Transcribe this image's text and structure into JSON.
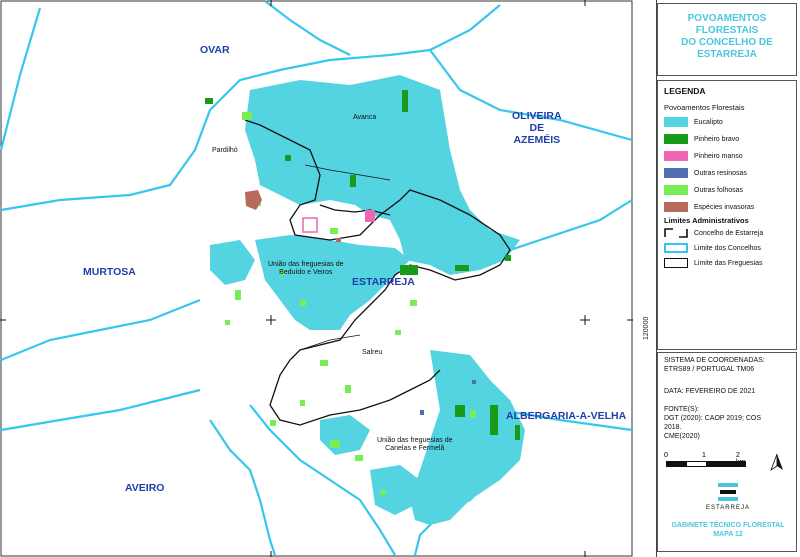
{
  "colors": {
    "eucalipto": "#54d3e0",
    "pinheiro_bravo": "#1a9a1a",
    "pinheiro_manso": "#ef67b3",
    "outras_resinosas": "#4e6fb0",
    "outras_folhosas": "#77ee55",
    "especies_invasoras": "#b56a5b",
    "limite_concelhos": "#37c6ec",
    "title_accent": "#4cc6e0",
    "concelho_label": "#1f3fa8"
  },
  "map": {
    "concelhos": {
      "ovar": "OVAR",
      "oliveira": "OLIVEIRA\nDE\nAZEMÉIS",
      "murtosa": "MURTOSA",
      "estarreja": "ESTARREJA",
      "albergaria": "ALBERGARIA-A-VELHA",
      "aveiro": "AVEIRO"
    },
    "freguesias": {
      "avanca": "Avanca",
      "pardilho": "Pardilhó",
      "beduido": "União das freguesias de\nBeduído e Veiros",
      "salreu": "Salreu",
      "canelas": "União das freguesias de\nCanelas e Fermelã"
    },
    "coordinate_label": "120000"
  },
  "panel": {
    "title": "POVOAMENTOS\nFLORESTAIS\nDO CONCELHO DE\nESTARREJA",
    "legend_heading": "LEGENDA",
    "povoamentos_heading": "Povoamentos Florestais",
    "items": [
      {
        "label": "Eucalipto",
        "color": "#54d3e0"
      },
      {
        "label": "Pinheiro bravo",
        "color": "#1a9a1a"
      },
      {
        "label": "Pinheiro manso",
        "color": "#ef67b3"
      },
      {
        "label": "Outras resinosas",
        "color": "#4e6fb0"
      },
      {
        "label": "Outras folhosas",
        "color": "#77ee55"
      },
      {
        "label": "Espécies invasoras",
        "color": "#b56a5b"
      }
    ],
    "limites_heading": "Limites Administrativos",
    "limites": [
      {
        "label": "Concelho de Estarreja",
        "style": "corner-black"
      },
      {
        "label": "Limite dos Concelhos",
        "style": "cyan-outline"
      },
      {
        "label": "Limite das Freguesias",
        "style": "black-outline"
      }
    ],
    "sistema": "SISTEMA DE COORDENADAS:\nETRS89 / PORTUGAL TM06",
    "data": "DATA: FEVEREIRO DE 2021",
    "fonte": "FONTE(S):\nDGT (2020): CAOP 2019; COS\n2018.\nCME(2020)",
    "scale": {
      "zero": "0",
      "one": "1",
      "two": "2 km"
    },
    "north_icon": "north-arrow-icon",
    "logo_text": "ESTARREJA",
    "footer": "GABINETE TÉCNICO FLORESTAL\nMAPA 12"
  }
}
